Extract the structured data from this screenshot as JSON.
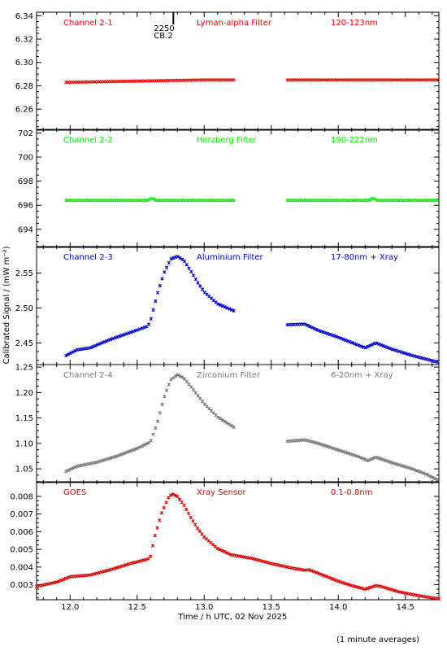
{
  "chart_data": {
    "type": "scatter",
    "xlabel": "Time / h UTC, 02 Nov 2025",
    "ylabel": "Calibrated Signal / (mW m⁻²)",
    "footer": "(1 minute averages)",
    "xlim": [
      11.75,
      14.75
    ],
    "xticks": [
      12.0,
      12.5,
      13.0,
      13.5,
      14.0,
      14.5
    ],
    "xtick_labels": [
      "12.0",
      "12.5",
      "13.0",
      "13.5",
      "14.0",
      "14.5"
    ],
    "marker_label": {
      "x": 12.77,
      "lines": [
        "2250",
        "CB.2"
      ]
    },
    "panels": [
      {
        "channel": "Channel 2-1",
        "filter": "Lyman-alpha Filter",
        "band": "120-123nm",
        "color": "#ff0000",
        "ylim": [
          6.242,
          6.343
        ],
        "yticks": [
          6.26,
          6.28,
          6.3,
          6.32,
          6.34
        ],
        "ytick_labels": [
          "6.26",
          "6.28",
          "6.30",
          "6.32",
          "6.34"
        ],
        "segments": [
          {
            "points": [
              [
                11.97,
                6.283
              ],
              [
                12.5,
                6.284
              ],
              [
                13.0,
                6.285
              ],
              [
                13.22,
                6.285
              ]
            ]
          },
          {
            "points": [
              [
                13.62,
                6.285
              ],
              [
                14.0,
                6.285
              ],
              [
                14.5,
                6.285
              ],
              [
                14.75,
                6.285
              ]
            ]
          }
        ]
      },
      {
        "channel": "Channel 2-2",
        "filter": "Herzberg Filter",
        "band": "190-222nm",
        "color": "#00ee00",
        "ylim": [
          692.5,
          702.3
        ],
        "yticks": [
          694,
          696,
          698,
          700,
          702
        ],
        "ytick_labels": [
          "694",
          "696",
          "698",
          "700",
          "702"
        ],
        "segments": [
          {
            "points": [
              [
                11.97,
                696.4
              ],
              [
                12.58,
                696.4
              ],
              [
                12.61,
                696.6
              ],
              [
                12.64,
                696.4
              ],
              [
                13.22,
                696.4
              ]
            ]
          },
          {
            "points": [
              [
                13.62,
                696.4
              ],
              [
                14.23,
                696.4
              ],
              [
                14.26,
                696.6
              ],
              [
                14.29,
                696.4
              ],
              [
                14.75,
                696.4
              ]
            ]
          }
        ]
      },
      {
        "channel": "Channel 2-3",
        "filter": "Aluminium Filter",
        "band": "17-80nm + Xray",
        "color": "#0000cc",
        "ylim": [
          2.419,
          2.588
        ],
        "yticks": [
          2.45,
          2.5,
          2.55
        ],
        "ytick_labels": [
          "2.45",
          "2.50",
          "2.55"
        ],
        "segments": [
          {
            "points": [
              [
                11.97,
                2.432
              ],
              [
                12.05,
                2.44
              ],
              [
                12.15,
                2.443
              ],
              [
                12.3,
                2.455
              ],
              [
                12.45,
                2.465
              ],
              [
                12.58,
                2.474
              ],
              [
                12.6,
                2.482
              ],
              [
                12.65,
                2.52
              ],
              [
                12.7,
                2.55
              ],
              [
                12.75,
                2.57
              ],
              [
                12.8,
                2.574
              ],
              [
                12.85,
                2.568
              ],
              [
                12.9,
                2.553
              ],
              [
                12.95,
                2.537
              ],
              [
                13.0,
                2.523
              ],
              [
                13.1,
                2.506
              ],
              [
                13.22,
                2.496
              ]
            ]
          },
          {
            "points": [
              [
                13.62,
                2.476
              ],
              [
                13.75,
                2.477
              ],
              [
                13.85,
                2.468
              ],
              [
                14.0,
                2.458
              ],
              [
                14.2,
                2.443
              ],
              [
                14.28,
                2.45
              ],
              [
                14.4,
                2.441
              ],
              [
                14.55,
                2.432
              ],
              [
                14.65,
                2.427
              ],
              [
                14.75,
                2.422
              ]
            ]
          }
        ]
      },
      {
        "channel": "Channel 2-4",
        "filter": "Zirconium Filter",
        "band": "6-20nm + Xray",
        "color": "#777777",
        "ylim": [
          1.023,
          1.255
        ],
        "yticks": [
          1.05,
          1.1,
          1.15,
          1.2,
          1.25
        ],
        "ytick_labels": [
          "1.05",
          "1.10",
          "1.15",
          "1.20",
          "1.25"
        ],
        "segments": [
          {
            "points": [
              [
                11.97,
                1.045
              ],
              [
                12.05,
                1.055
              ],
              [
                12.2,
                1.063
              ],
              [
                12.35,
                1.075
              ],
              [
                12.5,
                1.09
              ],
              [
                12.6,
                1.103
              ],
              [
                12.65,
                1.14
              ],
              [
                12.7,
                1.19
              ],
              [
                12.75,
                1.225
              ],
              [
                12.8,
                1.235
              ],
              [
                12.85,
                1.228
              ],
              [
                12.9,
                1.212
              ],
              [
                12.95,
                1.195
              ],
              [
                13.0,
                1.178
              ],
              [
                13.1,
                1.152
              ],
              [
                13.22,
                1.132
              ]
            ]
          },
          {
            "points": [
              [
                13.62,
                1.104
              ],
              [
                13.75,
                1.107
              ],
              [
                13.85,
                1.1
              ],
              [
                14.0,
                1.087
              ],
              [
                14.15,
                1.074
              ],
              [
                14.22,
                1.066
              ],
              [
                14.28,
                1.073
              ],
              [
                14.4,
                1.062
              ],
              [
                14.55,
                1.05
              ],
              [
                14.65,
                1.04
              ],
              [
                14.75,
                1.027
              ]
            ]
          }
        ]
      },
      {
        "channel": "GOES",
        "filter": "Xray Sensor",
        "band": "0.1-0.8nm",
        "color": "#dd0000",
        "ylim": [
          0.00215,
          0.00883
        ],
        "yticks": [
          0.003,
          0.004,
          0.005,
          0.006,
          0.007,
          0.008
        ],
        "ytick_labels": [
          "0.003",
          "0.004",
          "0.005",
          "0.006",
          "0.007",
          "0.008"
        ],
        "segments": [
          {
            "points": [
              [
                11.75,
                0.0029
              ],
              [
                11.9,
                0.00315
              ],
              [
                12.0,
                0.00345
              ],
              [
                12.15,
                0.00355
              ],
              [
                12.3,
                0.00385
              ],
              [
                12.45,
                0.0042
              ],
              [
                12.58,
                0.00445
              ],
              [
                12.6,
                0.0046
              ],
              [
                12.63,
                0.0057
              ],
              [
                12.68,
                0.007
              ],
              [
                12.73,
                0.0079
              ],
              [
                12.76,
                0.00815
              ],
              [
                12.8,
                0.008
              ],
              [
                12.85,
                0.0075
              ],
              [
                12.9,
                0.0068
              ],
              [
                12.95,
                0.0062
              ],
              [
                13.0,
                0.0057
              ],
              [
                13.1,
                0.00505
              ],
              [
                13.2,
                0.0047
              ],
              [
                13.35,
                0.0045
              ],
              [
                13.5,
                0.0042
              ],
              [
                13.65,
                0.00395
              ],
              [
                13.75,
                0.00382
              ],
              [
                13.78,
                0.00385
              ],
              [
                13.85,
                0.00365
              ],
              [
                14.0,
                0.0032
              ],
              [
                14.1,
                0.00295
              ],
              [
                14.2,
                0.00275
              ],
              [
                14.28,
                0.00295
              ],
              [
                14.32,
                0.0029
              ],
              [
                14.45,
                0.0026
              ],
              [
                14.6,
                0.00238
              ],
              [
                14.75,
                0.0022
              ]
            ]
          }
        ]
      }
    ]
  }
}
